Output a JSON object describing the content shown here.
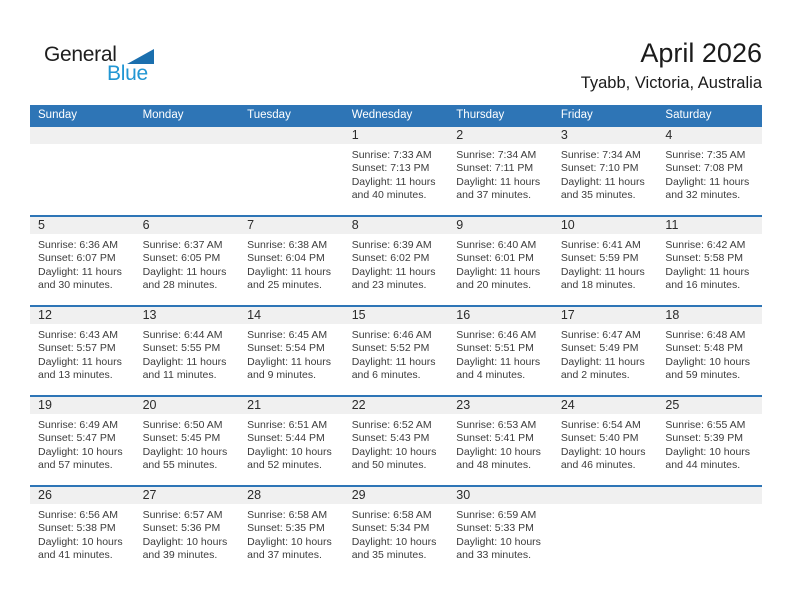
{
  "logo": {
    "general": "General",
    "blue": "Blue"
  },
  "header": {
    "title": "April 2026",
    "subtitle": "Tyabb, Victoria, Australia"
  },
  "weekdays": [
    "Sunday",
    "Monday",
    "Tuesday",
    "Wednesday",
    "Thursday",
    "Friday",
    "Saturday"
  ],
  "colors": {
    "header_blue": "#2e75b6",
    "row_divider_blue": "#2e75b6",
    "day_band_gray": "#f0f0f0",
    "logo_triangle_blue": "#1b6fae",
    "logo_text_blue": "#2196d3",
    "body_text": "#3c3c3c"
  },
  "weeks": [
    [
      {
        "day": "",
        "lines": []
      },
      {
        "day": "",
        "lines": []
      },
      {
        "day": "",
        "lines": []
      },
      {
        "day": "1",
        "lines": [
          "Sunrise: 7:33 AM",
          "Sunset: 7:13 PM",
          "Daylight: 11 hours",
          "and 40 minutes."
        ]
      },
      {
        "day": "2",
        "lines": [
          "Sunrise: 7:34 AM",
          "Sunset: 7:11 PM",
          "Daylight: 11 hours",
          "and 37 minutes."
        ]
      },
      {
        "day": "3",
        "lines": [
          "Sunrise: 7:34 AM",
          "Sunset: 7:10 PM",
          "Daylight: 11 hours",
          "and 35 minutes."
        ]
      },
      {
        "day": "4",
        "lines": [
          "Sunrise: 7:35 AM",
          "Sunset: 7:08 PM",
          "Daylight: 11 hours",
          "and 32 minutes."
        ]
      }
    ],
    [
      {
        "day": "5",
        "lines": [
          "Sunrise: 6:36 AM",
          "Sunset: 6:07 PM",
          "Daylight: 11 hours",
          "and 30 minutes."
        ]
      },
      {
        "day": "6",
        "lines": [
          "Sunrise: 6:37 AM",
          "Sunset: 6:05 PM",
          "Daylight: 11 hours",
          "and 28 minutes."
        ]
      },
      {
        "day": "7",
        "lines": [
          "Sunrise: 6:38 AM",
          "Sunset: 6:04 PM",
          "Daylight: 11 hours",
          "and 25 minutes."
        ]
      },
      {
        "day": "8",
        "lines": [
          "Sunrise: 6:39 AM",
          "Sunset: 6:02 PM",
          "Daylight: 11 hours",
          "and 23 minutes."
        ]
      },
      {
        "day": "9",
        "lines": [
          "Sunrise: 6:40 AM",
          "Sunset: 6:01 PM",
          "Daylight: 11 hours",
          "and 20 minutes."
        ]
      },
      {
        "day": "10",
        "lines": [
          "Sunrise: 6:41 AM",
          "Sunset: 5:59 PM",
          "Daylight: 11 hours",
          "and 18 minutes."
        ]
      },
      {
        "day": "11",
        "lines": [
          "Sunrise: 6:42 AM",
          "Sunset: 5:58 PM",
          "Daylight: 11 hours",
          "and 16 minutes."
        ]
      }
    ],
    [
      {
        "day": "12",
        "lines": [
          "Sunrise: 6:43 AM",
          "Sunset: 5:57 PM",
          "Daylight: 11 hours",
          "and 13 minutes."
        ]
      },
      {
        "day": "13",
        "lines": [
          "Sunrise: 6:44 AM",
          "Sunset: 5:55 PM",
          "Daylight: 11 hours",
          "and 11 minutes."
        ]
      },
      {
        "day": "14",
        "lines": [
          "Sunrise: 6:45 AM",
          "Sunset: 5:54 PM",
          "Daylight: 11 hours",
          "and 9 minutes."
        ]
      },
      {
        "day": "15",
        "lines": [
          "Sunrise: 6:46 AM",
          "Sunset: 5:52 PM",
          "Daylight: 11 hours",
          "and 6 minutes."
        ]
      },
      {
        "day": "16",
        "lines": [
          "Sunrise: 6:46 AM",
          "Sunset: 5:51 PM",
          "Daylight: 11 hours",
          "and 4 minutes."
        ]
      },
      {
        "day": "17",
        "lines": [
          "Sunrise: 6:47 AM",
          "Sunset: 5:49 PM",
          "Daylight: 11 hours",
          "and 2 minutes."
        ]
      },
      {
        "day": "18",
        "lines": [
          "Sunrise: 6:48 AM",
          "Sunset: 5:48 PM",
          "Daylight: 10 hours",
          "and 59 minutes."
        ]
      }
    ],
    [
      {
        "day": "19",
        "lines": [
          "Sunrise: 6:49 AM",
          "Sunset: 5:47 PM",
          "Daylight: 10 hours",
          "and 57 minutes."
        ]
      },
      {
        "day": "20",
        "lines": [
          "Sunrise: 6:50 AM",
          "Sunset: 5:45 PM",
          "Daylight: 10 hours",
          "and 55 minutes."
        ]
      },
      {
        "day": "21",
        "lines": [
          "Sunrise: 6:51 AM",
          "Sunset: 5:44 PM",
          "Daylight: 10 hours",
          "and 52 minutes."
        ]
      },
      {
        "day": "22",
        "lines": [
          "Sunrise: 6:52 AM",
          "Sunset: 5:43 PM",
          "Daylight: 10 hours",
          "and 50 minutes."
        ]
      },
      {
        "day": "23",
        "lines": [
          "Sunrise: 6:53 AM",
          "Sunset: 5:41 PM",
          "Daylight: 10 hours",
          "and 48 minutes."
        ]
      },
      {
        "day": "24",
        "lines": [
          "Sunrise: 6:54 AM",
          "Sunset: 5:40 PM",
          "Daylight: 10 hours",
          "and 46 minutes."
        ]
      },
      {
        "day": "25",
        "lines": [
          "Sunrise: 6:55 AM",
          "Sunset: 5:39 PM",
          "Daylight: 10 hours",
          "and 44 minutes."
        ]
      }
    ],
    [
      {
        "day": "26",
        "lines": [
          "Sunrise: 6:56 AM",
          "Sunset: 5:38 PM",
          "Daylight: 10 hours",
          "and 41 minutes."
        ]
      },
      {
        "day": "27",
        "lines": [
          "Sunrise: 6:57 AM",
          "Sunset: 5:36 PM",
          "Daylight: 10 hours",
          "and 39 minutes."
        ]
      },
      {
        "day": "28",
        "lines": [
          "Sunrise: 6:58 AM",
          "Sunset: 5:35 PM",
          "Daylight: 10 hours",
          "and 37 minutes."
        ]
      },
      {
        "day": "29",
        "lines": [
          "Sunrise: 6:58 AM",
          "Sunset: 5:34 PM",
          "Daylight: 10 hours",
          "and 35 minutes."
        ]
      },
      {
        "day": "30",
        "lines": [
          "Sunrise: 6:59 AM",
          "Sunset: 5:33 PM",
          "Daylight: 10 hours",
          "and 33 minutes."
        ]
      },
      {
        "day": "",
        "lines": []
      },
      {
        "day": "",
        "lines": []
      }
    ]
  ]
}
